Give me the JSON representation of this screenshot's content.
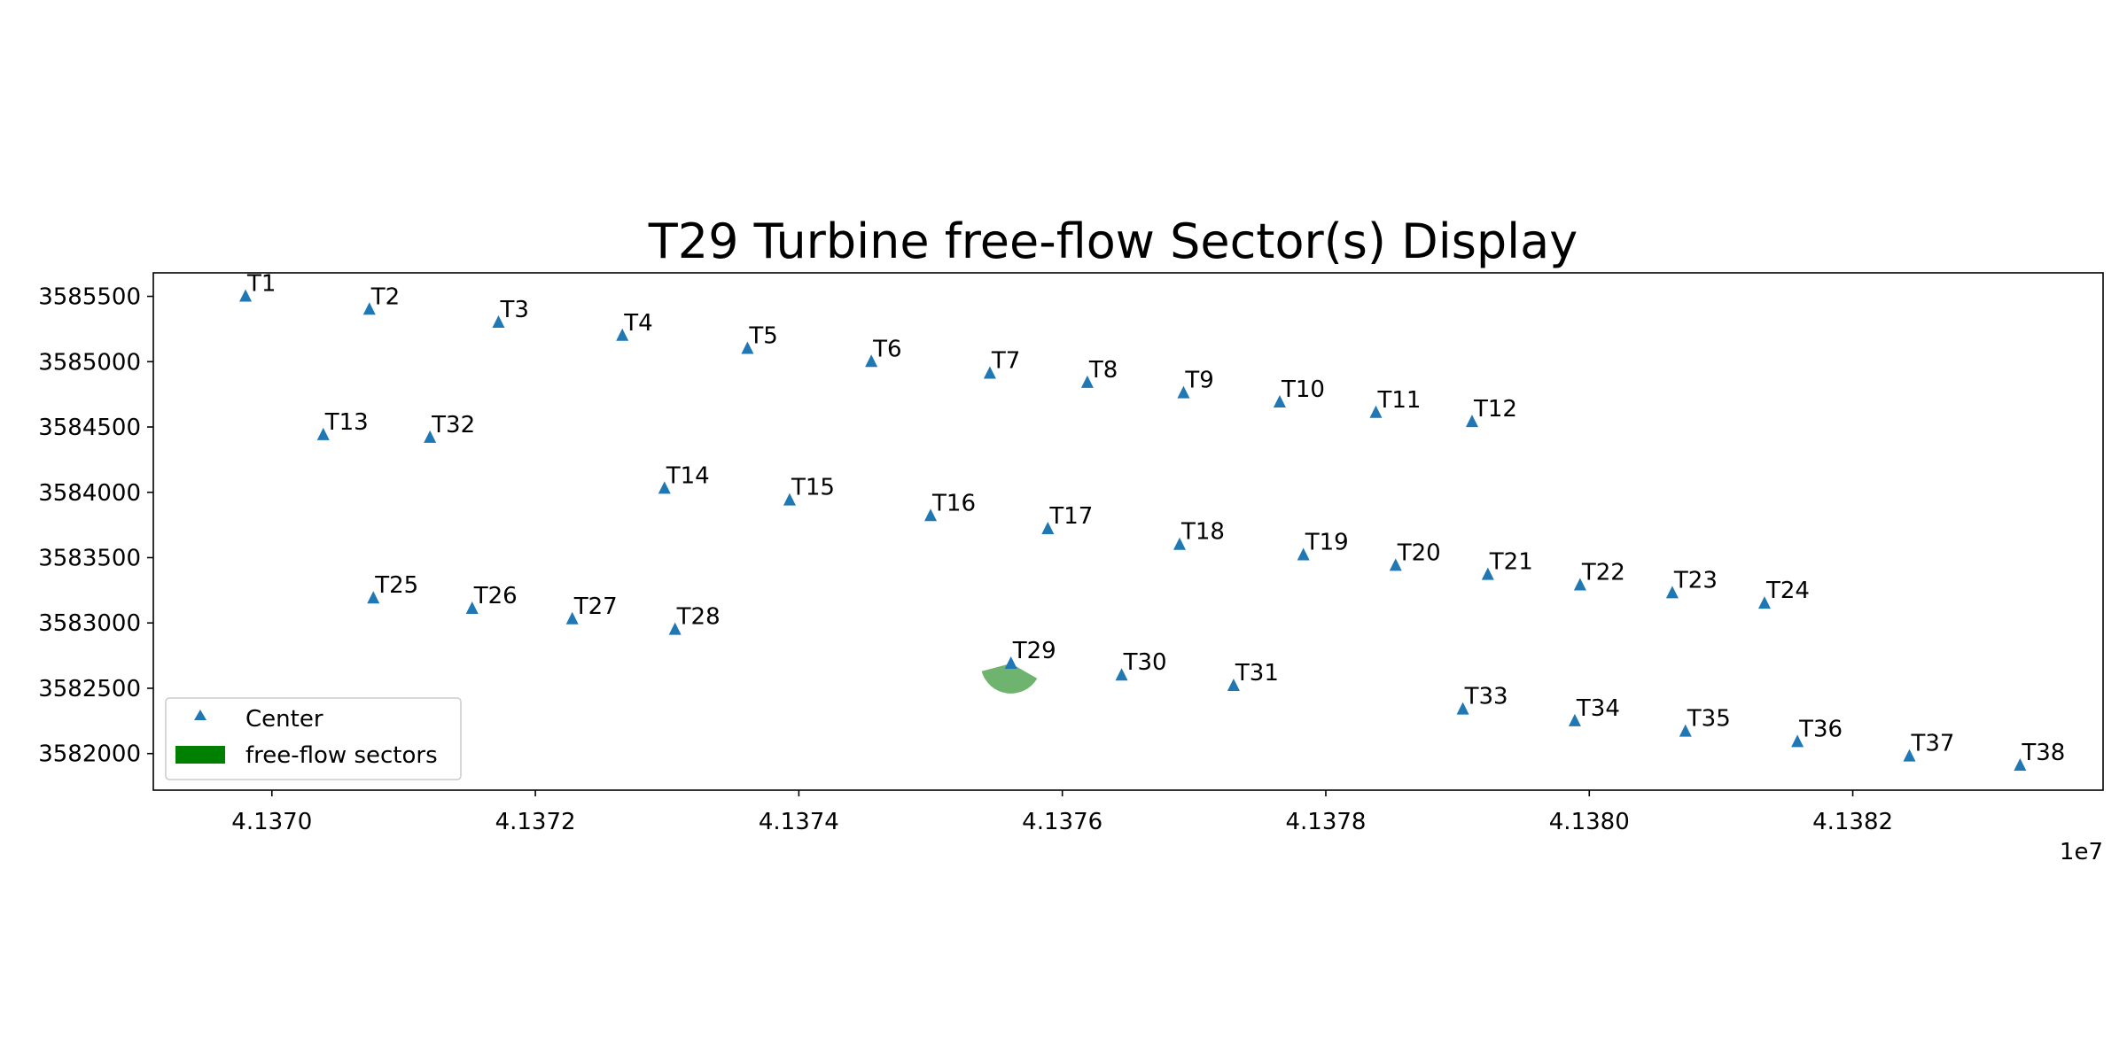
{
  "chart_data": {
    "type": "scatter",
    "title": "T29 Turbine free-flow Sector(s) Display",
    "xlabel": "",
    "ylabel": "",
    "x_scale_note": "1e7",
    "xlim": [
      41369100,
      41383900
    ],
    "ylim": [
      3581720,
      3585680
    ],
    "x_ticks": [
      41370000,
      41372000,
      41374000,
      41376000,
      41378000,
      41380000,
      41382000
    ],
    "x_tick_labels": [
      "4.1370",
      "4.1372",
      "4.1374",
      "4.1376",
      "4.1378",
      "4.1380",
      "4.1382"
    ],
    "y_ticks": [
      3582000,
      3582500,
      3583000,
      3583500,
      3584000,
      3584500,
      3585000,
      3585500
    ],
    "y_tick_labels": [
      "3582000",
      "3582500",
      "3583000",
      "3583500",
      "3584000",
      "3584500",
      "3585000",
      "3585500"
    ],
    "grid": false,
    "legend_position": "lower-left",
    "series": [
      {
        "name": "Center",
        "marker": "triangle",
        "color": "#1f77b4",
        "points": [
          {
            "label": "T1",
            "x": 41369800,
            "y": 3585500
          },
          {
            "label": "T2",
            "x": 41370740,
            "y": 3585400
          },
          {
            "label": "T3",
            "x": 41371720,
            "y": 3585300
          },
          {
            "label": "T4",
            "x": 41372660,
            "y": 3585200
          },
          {
            "label": "T5",
            "x": 41373610,
            "y": 3585100
          },
          {
            "label": "T6",
            "x": 41374550,
            "y": 3585000
          },
          {
            "label": "T7",
            "x": 41375450,
            "y": 3584910
          },
          {
            "label": "T8",
            "x": 41376190,
            "y": 3584840
          },
          {
            "label": "T9",
            "x": 41376920,
            "y": 3584760
          },
          {
            "label": "T10",
            "x": 41377650,
            "y": 3584690
          },
          {
            "label": "T11",
            "x": 41378380,
            "y": 3584610
          },
          {
            "label": "T12",
            "x": 41379110,
            "y": 3584540
          },
          {
            "label": "T13",
            "x": 41370390,
            "y": 3584440
          },
          {
            "label": "T32",
            "x": 41371200,
            "y": 3584420
          },
          {
            "label": "T14",
            "x": 41372980,
            "y": 3584030
          },
          {
            "label": "T15",
            "x": 41373930,
            "y": 3583940
          },
          {
            "label": "T16",
            "x": 41375000,
            "y": 3583820
          },
          {
            "label": "T17",
            "x": 41375890,
            "y": 3583720
          },
          {
            "label": "T18",
            "x": 41376890,
            "y": 3583600
          },
          {
            "label": "T19",
            "x": 41377830,
            "y": 3583520
          },
          {
            "label": "T20",
            "x": 41378530,
            "y": 3583440
          },
          {
            "label": "T21",
            "x": 41379230,
            "y": 3583370
          },
          {
            "label": "T22",
            "x": 41379930,
            "y": 3583290
          },
          {
            "label": "T23",
            "x": 41380630,
            "y": 3583230
          },
          {
            "label": "T24",
            "x": 41381330,
            "y": 3583150
          },
          {
            "label": "T25",
            "x": 41370770,
            "y": 3583190
          },
          {
            "label": "T26",
            "x": 41371520,
            "y": 3583110
          },
          {
            "label": "T27",
            "x": 41372280,
            "y": 3583030
          },
          {
            "label": "T28",
            "x": 41373060,
            "y": 3582950
          },
          {
            "label": "T29",
            "x": 41375610,
            "y": 3582690
          },
          {
            "label": "T30",
            "x": 41376450,
            "y": 3582600
          },
          {
            "label": "T31",
            "x": 41377300,
            "y": 3582520
          },
          {
            "label": "T33",
            "x": 41379040,
            "y": 3582340
          },
          {
            "label": "T34",
            "x": 41379890,
            "y": 3582250
          },
          {
            "label": "T35",
            "x": 41380730,
            "y": 3582170
          },
          {
            "label": "T36",
            "x": 41381580,
            "y": 3582090
          },
          {
            "label": "T37",
            "x": 41382430,
            "y": 3581980
          },
          {
            "label": "T38",
            "x": 41383270,
            "y": 3581910
          }
        ]
      },
      {
        "name": "free-flow sectors",
        "marker": "wedge",
        "color": "#008000",
        "wedge_color": "#66b066",
        "center": {
          "x": 41375610,
          "y": 3582690
        },
        "radius": 230,
        "start_angle_deg": 195,
        "end_angle_deg": 330
      }
    ]
  }
}
